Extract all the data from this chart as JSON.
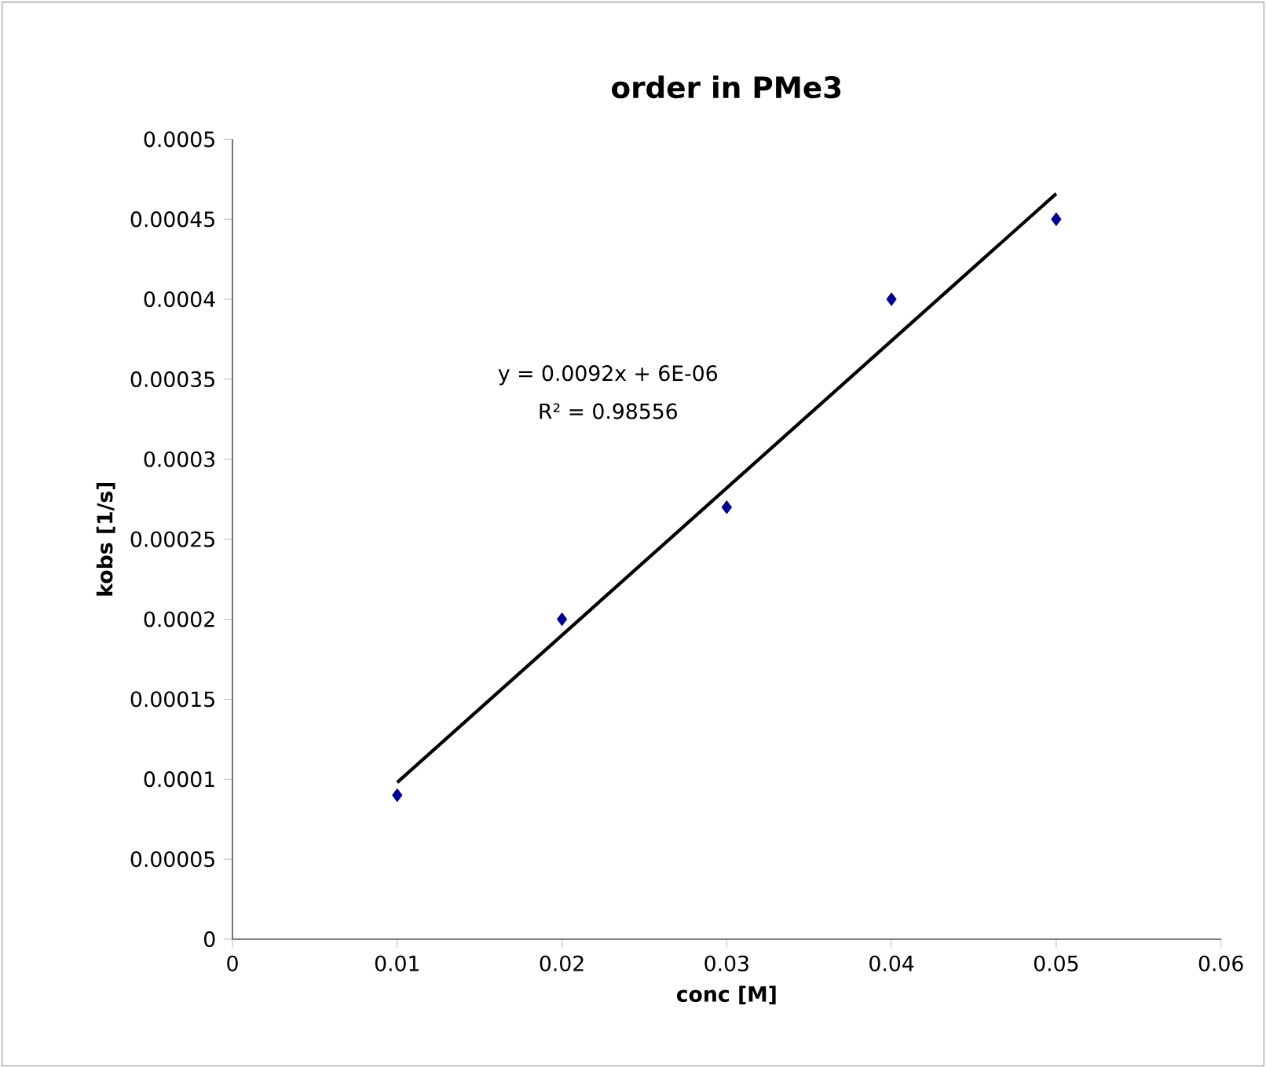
{
  "chart_data": {
    "type": "scatter",
    "title": "order in PMe3",
    "xlabel": "conc [M]",
    "ylabel": "kobs [1/s]",
    "annotations": [
      "y = 0.0092x + 6E-06",
      "R² = 0.98556"
    ],
    "series": [
      {
        "color": "#000099",
        "marker": "diamond",
        "x": [
          0.01,
          0.02,
          0.03,
          0.04,
          0.05
        ],
        "values": [
          9e-05,
          0.0002,
          0.00027,
          0.0004,
          0.00045
        ]
      },
      {
        "type": "line",
        "color": "#000000",
        "marker": "none",
        "line_style": "solid",
        "x": [
          0.01,
          0.05
        ],
        "values": [
          9.8e-05,
          0.000466
        ]
      }
    ],
    "xlim": [
      0,
      0.06
    ],
    "xticks": [
      0,
      0.01,
      0.02,
      0.03,
      0.04,
      0.05,
      0.06
    ],
    "ylim": [
      0,
      0.0005
    ],
    "yticks": [
      {
        "value": 0,
        "label": "0"
      },
      {
        "value": 5e-05,
        "label": "0.00005"
      },
      {
        "value": 0.0001,
        "label": "0.0001"
      },
      {
        "value": 0.00015,
        "label": "0.00015"
      },
      {
        "value": 0.0002,
        "label": "0.0002"
      },
      {
        "value": 0.00025,
        "label": "0.00025"
      },
      {
        "value": 0.0003,
        "label": "0.0003"
      },
      {
        "value": 0.00035,
        "label": "0.00035"
      },
      {
        "value": 0.0004,
        "label": "0.0004"
      },
      {
        "value": 0.00045,
        "label": "0.00045"
      },
      {
        "value": 0.0005,
        "label": "0.0005"
      }
    ],
    "grid": false
  }
}
